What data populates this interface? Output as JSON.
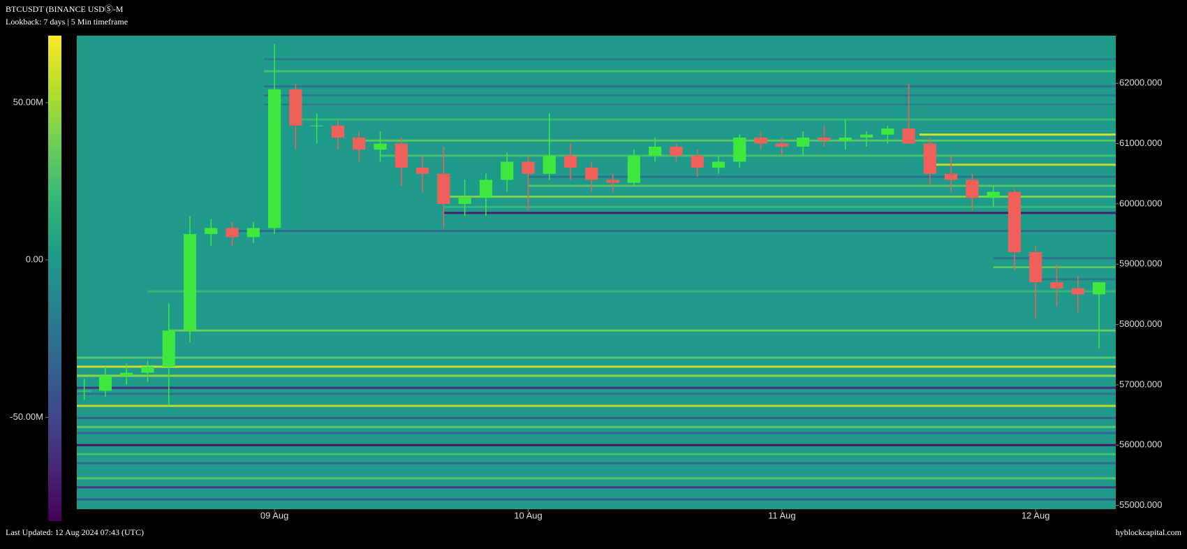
{
  "chart_data": {
    "type": "candlestick",
    "title": "BTCUSDT (BINANCE USDⓈ-M",
    "subtitle": "Lookback: 7 days | 5 Min timeframe",
    "footer_left": "Last Updated: 12 Aug 2024 07:43 (UTC)",
    "footer_right": "hyblockcapital.com",
    "up_color": "#3ee83e",
    "down_color": "#f0605a",
    "x": [
      "08 Aug 06:00",
      "08 Aug 08:00",
      "08 Aug 10:00",
      "08 Aug 12:00",
      "08 Aug 14:00",
      "08 Aug 16:00",
      "08 Aug 18:00",
      "08 Aug 20:00",
      "08 Aug 22:00",
      "09 Aug 00:00",
      "09 Aug 02:00",
      "09 Aug 04:00",
      "09 Aug 06:00",
      "09 Aug 08:00",
      "09 Aug 10:00",
      "09 Aug 12:00",
      "09 Aug 14:00",
      "09 Aug 16:00",
      "09 Aug 18:00",
      "09 Aug 20:00",
      "09 Aug 22:00",
      "10 Aug 00:00",
      "10 Aug 02:00",
      "10 Aug 04:00",
      "10 Aug 06:00",
      "10 Aug 08:00",
      "10 Aug 10:00",
      "10 Aug 12:00",
      "10 Aug 14:00",
      "10 Aug 16:00",
      "10 Aug 18:00",
      "10 Aug 20:00",
      "10 Aug 22:00",
      "11 Aug 00:00",
      "11 Aug 02:00",
      "11 Aug 04:00",
      "11 Aug 06:00",
      "11 Aug 08:00",
      "11 Aug 10:00",
      "11 Aug 12:00",
      "11 Aug 14:00",
      "11 Aug 16:00",
      "11 Aug 18:00",
      "11 Aug 20:00",
      "11 Aug 22:00",
      "12 Aug 00:00",
      "12 Aug 02:00",
      "12 Aug 04:00",
      "12 Aug 06:00"
    ],
    "open": [
      56900,
      56900,
      57150,
      57200,
      57300,
      57900,
      59500,
      59600,
      59450,
      59600,
      61900,
      61300,
      61300,
      61100,
      60900,
      61000,
      60600,
      60500,
      60000,
      60100,
      60400,
      60700,
      60500,
      60800,
      60600,
      60400,
      60350,
      60800,
      60950,
      60800,
      60600,
      60700,
      61100,
      61000,
      60950,
      61100,
      61050,
      61100,
      61150,
      61250,
      61000,
      60500,
      60400,
      60100,
      60200,
      59200,
      58700,
      58600,
      58500
    ],
    "high": [
      57100,
      57300,
      57350,
      57400,
      58350,
      59800,
      59750,
      59700,
      59700,
      62650,
      62000,
      61500,
      61400,
      61200,
      61200,
      61100,
      60800,
      60950,
      60400,
      60500,
      60850,
      60800,
      61500,
      61000,
      60700,
      60500,
      60900,
      61100,
      61000,
      60900,
      60800,
      61150,
      61200,
      61100,
      61200,
      61300,
      61400,
      61200,
      61300,
      62000,
      61100,
      60800,
      60500,
      60300,
      60250,
      59300,
      59000,
      58800,
      58700
    ],
    "low": [
      56750,
      56800,
      57000,
      57050,
      56650,
      57700,
      59300,
      59300,
      59350,
      59500,
      60900,
      61000,
      60900,
      60700,
      60700,
      60300,
      60200,
      59600,
      59800,
      59800,
      60200,
      59900,
      60400,
      60400,
      60200,
      60200,
      60300,
      60700,
      60700,
      60450,
      60500,
      60600,
      60900,
      60800,
      60800,
      60950,
      60900,
      60950,
      61000,
      61000,
      60300,
      60200,
      59900,
      59950,
      58900,
      58100,
      58300,
      58200,
      57600
    ],
    "close": [
      56900,
      57150,
      57200,
      57300,
      57900,
      59500,
      59600,
      59450,
      59600,
      61900,
      61300,
      61300,
      61100,
      60900,
      61000,
      60600,
      60500,
      60000,
      60100,
      60400,
      60700,
      60500,
      60800,
      60600,
      60400,
      60350,
      60800,
      60950,
      60800,
      60600,
      60700,
      61100,
      61000,
      60950,
      61100,
      61050,
      61100,
      61150,
      61250,
      61000,
      60500,
      60400,
      60100,
      60200,
      59200,
      58700,
      58600,
      58500,
      58700
    ],
    "xlim": [
      "08 Aug 05:18",
      "12 Aug 07:35"
    ],
    "xticks": [
      {
        "value": "09 Aug 00:00",
        "label": "09 Aug"
      },
      {
        "value": "10 Aug 00:00",
        "label": "10 Aug"
      },
      {
        "value": "11 Aug 00:00",
        "label": "11 Aug"
      },
      {
        "value": "12 Aug 00:00",
        "label": "12 Aug"
      }
    ],
    "ylim": [
      54937,
      62791
    ],
    "yticks": [
      {
        "value": 55000,
        "label": "55000.000"
      },
      {
        "value": 56000,
        "label": "56000.000"
      },
      {
        "value": 57000,
        "label": "57000.000"
      },
      {
        "value": 58000,
        "label": "58000.000"
      },
      {
        "value": 59000,
        "label": "59000.000"
      },
      {
        "value": 60000,
        "label": "60000.000"
      },
      {
        "value": 61000,
        "label": "61000.000"
      },
      {
        "value": 62000,
        "label": "62000.000"
      }
    ],
    "clim": [
      -83000000,
      71300000
    ],
    "cticks": [
      {
        "value": -50000000,
        "label": "-50.00M"
      },
      {
        "value": 0,
        "label": "0.00"
      },
      {
        "value": 50000000,
        "label": "50.00M"
      }
    ],
    "levels": {
      "price": [
        62400,
        62200,
        61950,
        61800,
        61650,
        61400,
        61150,
        61050,
        60800,
        60650,
        60450,
        60300,
        60120,
        59950,
        59850,
        59550,
        59100,
        58950,
        58750,
        58550,
        57900,
        57450,
        57300,
        57150,
        56950,
        56850,
        56650,
        56450,
        56300,
        56200,
        56000,
        55850,
        55700,
        55450,
        55300,
        55100
      ],
      "start": [
        "08 Aug 23:00",
        "08 Aug 23:00",
        "08 Aug 23:00",
        "08 Aug 23:00",
        "08 Aug 23:00",
        "09 Aug 02:00",
        "11 Aug 13:00",
        "09 Aug 08:00",
        "09 Aug 10:00",
        "11 Aug 14:00",
        "10 Aug 00:00",
        "10 Aug 00:00",
        "09 Aug 16:00",
        "09 Aug 16:00",
        "09 Aug 16:00",
        "08 Aug 20:00",
        "11 Aug 20:00",
        "11 Aug 20:00",
        "12 Aug 00:00",
        "08 Aug 12:00",
        "08 Aug 14:00",
        "08 Aug 05:18",
        "08 Aug 05:18",
        "08 Aug 05:18",
        "08 Aug 05:18",
        "08 Aug 05:18",
        "08 Aug 05:18",
        "08 Aug 05:18",
        "08 Aug 05:18",
        "08 Aug 05:18",
        "08 Aug 05:18",
        "08 Aug 05:18",
        "08 Aug 05:18",
        "08 Aug 05:18",
        "08 Aug 05:18",
        "08 Aug 05:18"
      ],
      "value": [
        -20000000,
        25000000,
        -25000000,
        -20000000,
        -15000000,
        20000000,
        60000000,
        30000000,
        25000000,
        55000000,
        -25000000,
        30000000,
        40000000,
        20000000,
        -70000000,
        -30000000,
        -25000000,
        30000000,
        -20000000,
        20000000,
        35000000,
        30000000,
        60000000,
        45000000,
        -60000000,
        -25000000,
        55000000,
        -35000000,
        30000000,
        -30000000,
        -75000000,
        25000000,
        -30000000,
        30000000,
        -55000000,
        -40000000
      ]
    }
  }
}
